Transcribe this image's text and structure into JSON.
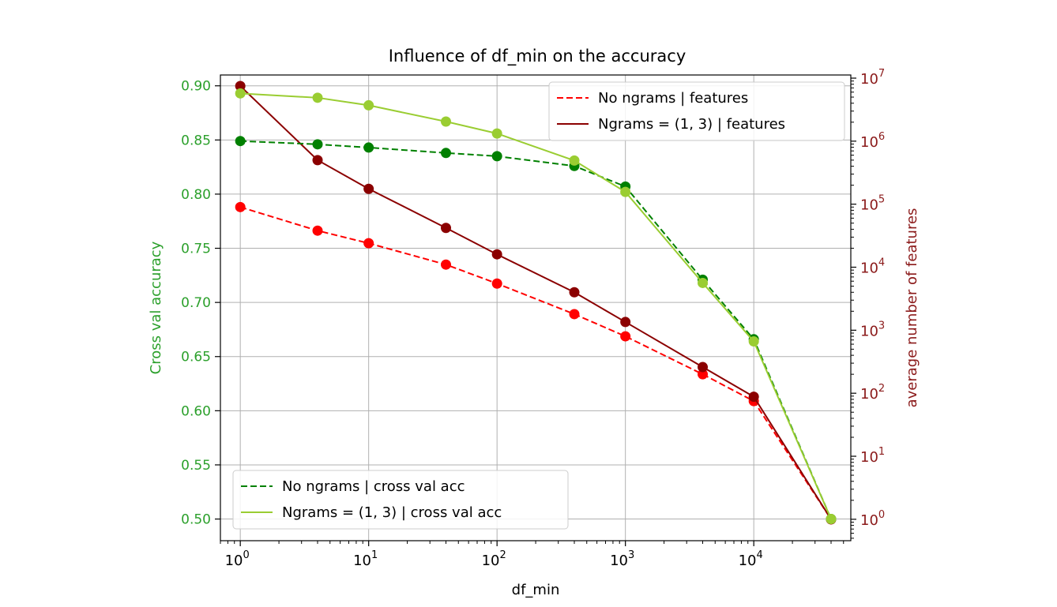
{
  "chart_data": {
    "type": "line",
    "title": "Influence of df_min on the accuracy",
    "xlabel": "df_min",
    "ylabel_left": "Cross val accuracy",
    "ylabel_right": "average number of features",
    "xscale": "log",
    "xlim": [
      0.7,
      57000
    ],
    "ylim_left": [
      0.48,
      0.91
    ],
    "ylim_right_log10": [
      -0.34,
      7.05
    ],
    "grid": true,
    "x": [
      1,
      4,
      10,
      40,
      100,
      400,
      1000,
      4000,
      10000,
      40000
    ],
    "x_ticks": [
      {
        "value": 1,
        "base": "10",
        "exp": "0"
      },
      {
        "value": 10,
        "base": "10",
        "exp": "1"
      },
      {
        "value": 100,
        "base": "10",
        "exp": "2"
      },
      {
        "value": 1000,
        "base": "10",
        "exp": "3"
      },
      {
        "value": 10000,
        "base": "10",
        "exp": "4"
      }
    ],
    "y_ticks_left": [
      "0.50",
      "0.55",
      "0.60",
      "0.65",
      "0.70",
      "0.75",
      "0.80",
      "0.85",
      "0.90"
    ],
    "y_ticks_right": [
      {
        "value": 1,
        "base": "10",
        "exp": "0"
      },
      {
        "value": 10,
        "base": "10",
        "exp": "1"
      },
      {
        "value": 100,
        "base": "10",
        "exp": "2"
      },
      {
        "value": 1000,
        "base": "10",
        "exp": "3"
      },
      {
        "value": 10000,
        "base": "10",
        "exp": "4"
      },
      {
        "value": 100000,
        "base": "10",
        "exp": "5"
      },
      {
        "value": 1000000,
        "base": "10",
        "exp": "6"
      },
      {
        "value": 10000000,
        "base": "10",
        "exp": "7"
      }
    ],
    "colors": {
      "left_axis": "#2ca02c",
      "right_axis": "#8b1a1a",
      "grid": "#b0b0b0"
    },
    "series": [
      {
        "name": "No ngrams | cross val acc",
        "axis": "left",
        "color": "#008000",
        "dashed": true,
        "values": [
          0.849,
          0.846,
          0.843,
          0.838,
          0.835,
          0.826,
          0.807,
          0.721,
          0.666,
          0.5
        ]
      },
      {
        "name": "Ngrams = (1, 3) | cross val acc",
        "axis": "left",
        "color": "#9acd32",
        "dashed": false,
        "values": [
          0.893,
          0.889,
          0.882,
          0.867,
          0.856,
          0.831,
          0.802,
          0.718,
          0.664,
          0.5
        ]
      },
      {
        "name": "No ngrams | features",
        "axis": "right",
        "color": "#ff0000",
        "dashed": true,
        "values": [
          90000,
          38000,
          24000,
          11000,
          5500,
          1800,
          800,
          200,
          75,
          1
        ]
      },
      {
        "name": "Ngrams = (1, 3) | features",
        "axis": "right",
        "color": "#8b0000",
        "dashed": false,
        "values": [
          7500000,
          500000,
          175000,
          42000,
          16000,
          4000,
          1350,
          260,
          88,
          1
        ]
      }
    ],
    "legend_right_entries": [
      2,
      3
    ],
    "legend_left_entries": [
      0,
      1
    ],
    "legend_right_placement": "upper right",
    "legend_left_placement": "lower left"
  }
}
